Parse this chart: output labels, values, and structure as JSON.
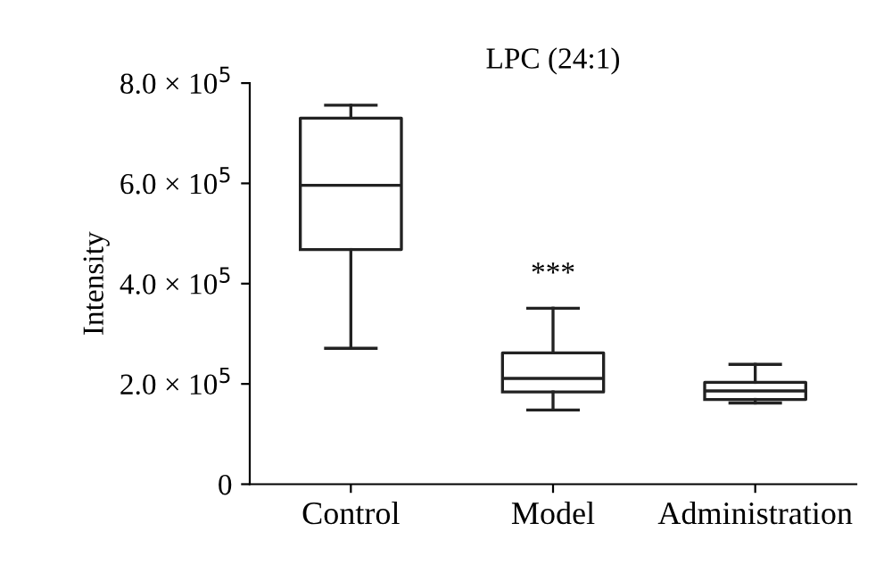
{
  "chart_data": {
    "type": "box",
    "title": "LPC (24:1)",
    "ylabel": "Intensity",
    "categories": [
      "Control",
      "Model",
      "Administration"
    ],
    "boxes": [
      {
        "low": 271000,
        "q1": 468000,
        "median": 596000,
        "q3": 730000,
        "high": 756000
      },
      {
        "low": 148000,
        "q1": 184000,
        "median": 211000,
        "q3": 262000,
        "high": 351000
      },
      {
        "low": 162000,
        "q1": 169000,
        "median": 186000,
        "q3": 203000,
        "high": 239000
      }
    ],
    "ylim": [
      0,
      800000
    ],
    "yticks": [
      0,
      {
        "value": 200000,
        "label": "2.0 × 10$^{5}$"
      },
      {
        "value": 400000,
        "label": "4.0 × 10$^{5}$"
      },
      {
        "value": 600000,
        "label": "6.0 × 10$^{5}$"
      },
      {
        "value": 800000,
        "label": "8.0 × 10$^{5}$"
      }
    ],
    "annotations": [
      "***"
    ],
    "grid": false,
    "legend": false
  }
}
